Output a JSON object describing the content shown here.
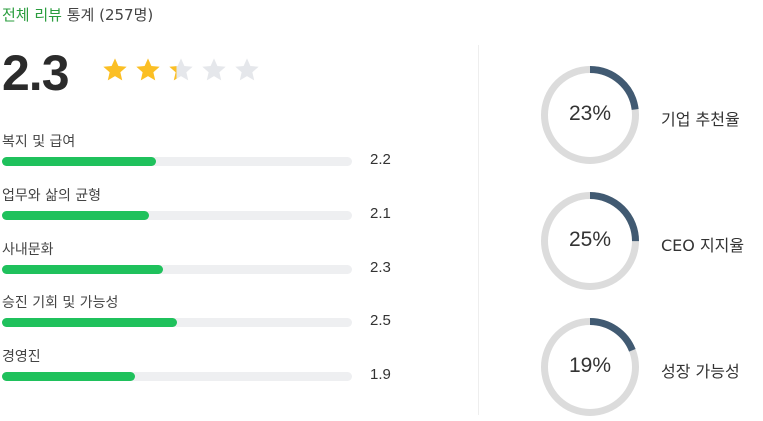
{
  "header": {
    "title_green": "전체 리뷰",
    "title_rest": "통계 (257명)"
  },
  "overall": {
    "score": "2.3",
    "stars": 2.3,
    "max_stars": 5,
    "star_color": "#fbbf24"
  },
  "categories": [
    {
      "label": "복지 및 급여",
      "value": "2.2"
    },
    {
      "label": "업무와 삶의 균형",
      "value": "2.1"
    },
    {
      "label": "사내문화",
      "value": "2.3"
    },
    {
      "label": "승진 기회 및 가능성",
      "value": "2.5"
    },
    {
      "label": "경영진",
      "value": "1.9"
    }
  ],
  "bar_color": "#1fc15c",
  "stats": [
    {
      "percent": "23%",
      "value": 23,
      "label": "기업 추천율"
    },
    {
      "percent": "25%",
      "value": 25,
      "label": "CEO 지지율"
    },
    {
      "percent": "19%",
      "value": 19,
      "label": "성장 가능성"
    }
  ],
  "donut_color": "#415a72"
}
